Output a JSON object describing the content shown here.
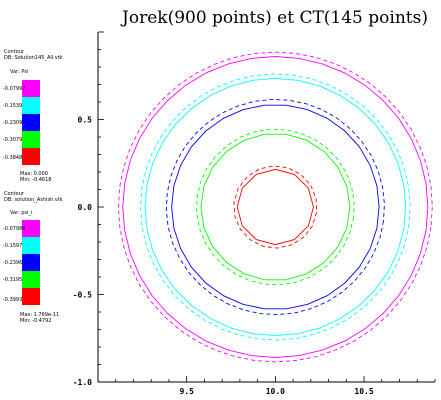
{
  "title": "Jorek(900 points) et CT(145 points)",
  "legends": [
    {
      "header": "Contour",
      "db": "DB: Solution145_All.vtk",
      "var": "Var: Psi",
      "levels": [
        "-0.07997",
        "-0.1539",
        "-0.2309",
        "-0.3079",
        "-0.3848"
      ],
      "max": "Max: 0.000",
      "min": "Min: -0.4618"
    },
    {
      "header": "Contour",
      "db": "DB: solution_Ashish.vtk",
      "var": "Var: psi_i",
      "levels": [
        "-0.07986",
        "-0.1597",
        "-0.2396",
        "-0.3195",
        "-0.3993"
      ],
      "max": "Max: 1.769e-11",
      "min": "Min: -0.4792"
    }
  ],
  "legend_colors": [
    "#ff00ff",
    "#00ffff",
    "#0000ff",
    "#00ff00",
    "#ff0000"
  ],
  "chart_data": {
    "type": "line",
    "title": "Jorek(900 points) et CT(145 points)",
    "xlabel": "",
    "ylabel": "",
    "x_ticks": [
      "9.5",
      "10.0",
      "10.5"
    ],
    "y_ticks": [
      "0.5",
      "0.0",
      "-0.5",
      "-1.0"
    ],
    "xlim": [
      9.0,
      10.9
    ],
    "ylim": [
      -1.0,
      1.0
    ],
    "center": [
      10.0,
      0.0
    ],
    "series": [
      {
        "color": "#ff00ff",
        "style": "solid",
        "radius": 0.86,
        "sides": 40
      },
      {
        "color": "#ff00ff",
        "style": "dashed",
        "radius": 0.885,
        "sides": 48
      },
      {
        "color": "#00ffff",
        "style": "solid",
        "radius": 0.735,
        "sides": 36
      },
      {
        "color": "#00ffff",
        "style": "dashed",
        "radius": 0.76,
        "sides": 44
      },
      {
        "color": "#0000ff",
        "style": "solid",
        "radius": 0.585,
        "sides": 30
      },
      {
        "color": "#0000ff",
        "style": "dashed",
        "radius": 0.615,
        "sides": 40
      },
      {
        "color": "#00ff00",
        "style": "solid",
        "radius": 0.42,
        "sides": 22
      },
      {
        "color": "#00ff00",
        "style": "dashed",
        "radius": 0.445,
        "sides": 32
      },
      {
        "color": "#ff0000",
        "style": "solid",
        "radius": 0.215,
        "sides": 12
      },
      {
        "color": "#ff0000",
        "style": "dashed",
        "radius": 0.235,
        "sides": 18
      }
    ]
  }
}
